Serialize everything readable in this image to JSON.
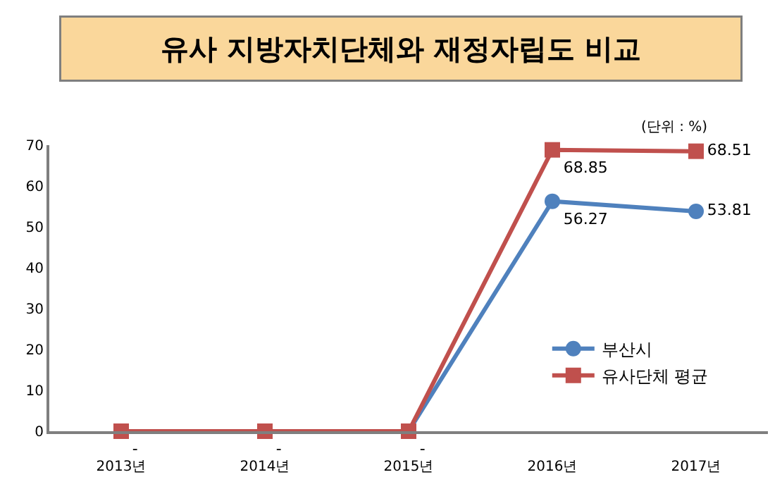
{
  "chart_data": {
    "type": "line",
    "title": "유사 지방자치단체와 재정자립도 비교",
    "categories": [
      "2013년",
      "2014년",
      "2015년",
      "2016년",
      "2017년"
    ],
    "series": [
      {
        "name": "부산시",
        "color": "#4f81bd",
        "marker": "circle",
        "values": [
          0,
          0,
          0,
          56.27,
          53.81
        ],
        "value_labels": [
          "-",
          "-",
          "-",
          "56.27",
          "53.81"
        ]
      },
      {
        "name": "유사단체 평균",
        "color": "#c0504d",
        "marker": "square",
        "values": [
          0,
          0,
          0,
          68.85,
          68.51
        ],
        "value_labels": [
          null,
          null,
          null,
          "68.85",
          "68.51"
        ]
      }
    ],
    "ylim": [
      0,
      70
    ],
    "yticks": [
      0,
      10,
      20,
      30,
      40,
      50,
      60,
      70
    ],
    "grid": false,
    "legend": "bottom right",
    "line_style": "solid",
    "annotations": [
      "(단위 : %)"
    ]
  }
}
